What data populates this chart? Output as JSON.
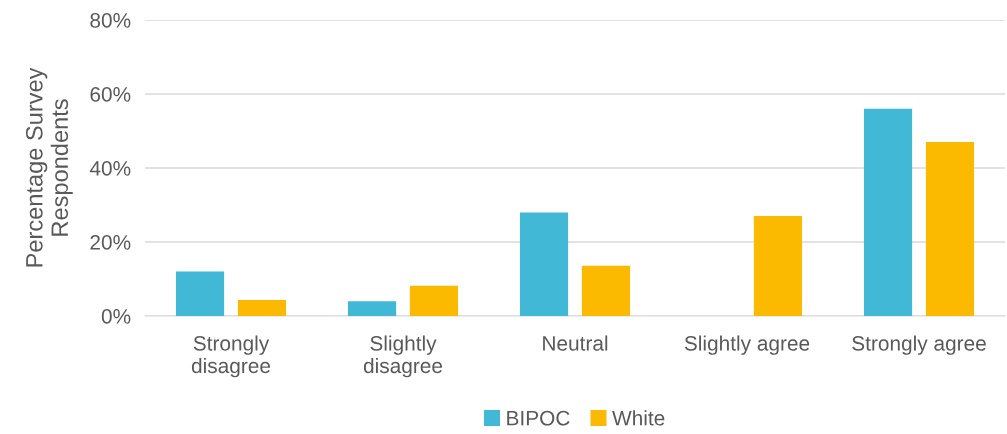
{
  "chart_data": {
    "type": "bar",
    "ylabel": "Percentage Survey\nRespondents",
    "categories": [
      "Strongly\ndisagree",
      "Slightly\ndisagree",
      "Neutral",
      "Slightly agree",
      "Strongly agree"
    ],
    "series": [
      {
        "name": "BIPOC",
        "color": "#41b8d5",
        "values": [
          12,
          4,
          28,
          0,
          56
        ]
      },
      {
        "name": "White",
        "color": "#fbb900",
        "values": [
          4.3,
          8.2,
          13.6,
          27,
          47
        ]
      }
    ],
    "ylim": [
      0,
      80
    ],
    "yticks": [
      {
        "value": 0,
        "label": "0%"
      },
      {
        "value": 20,
        "label": "20%"
      },
      {
        "value": 40,
        "label": "40%"
      },
      {
        "value": 60,
        "label": "60%"
      },
      {
        "value": 80,
        "label": "80%"
      }
    ],
    "grid": "y",
    "legend": "bottom"
  }
}
